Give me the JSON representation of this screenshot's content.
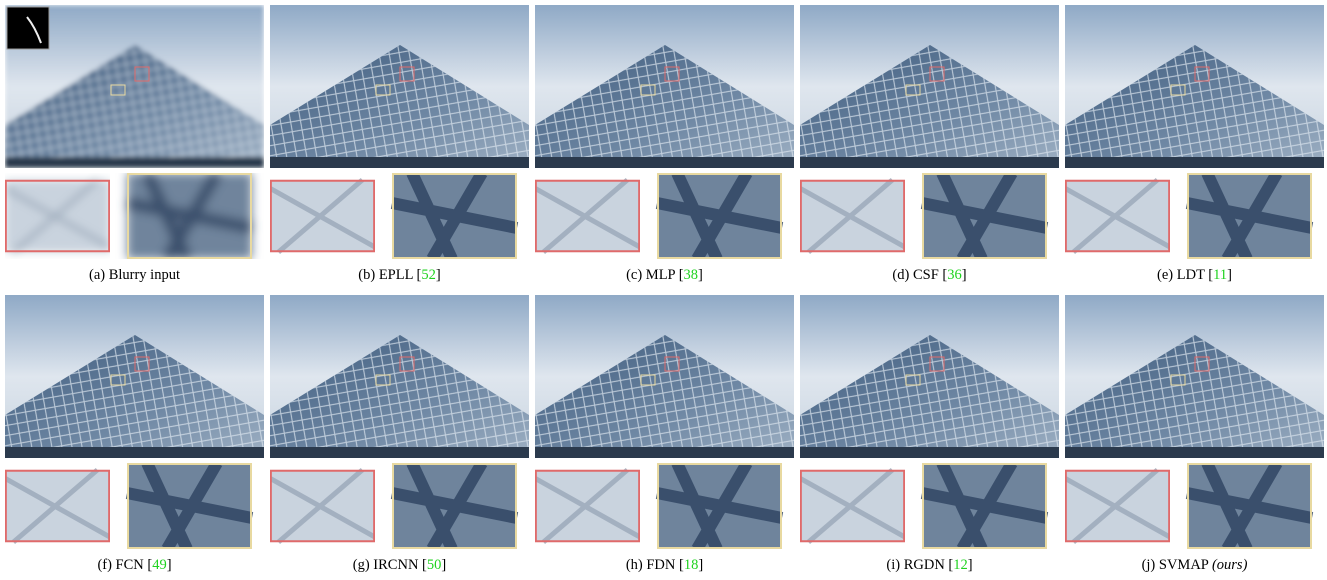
{
  "panels": [
    {
      "caption": "(a) Blurry input"
    },
    {
      "caption": "(b) EPLL [",
      "cite": "52",
      "caption_end": "]"
    },
    {
      "caption": "(c) MLP [",
      "cite": "38",
      "caption_end": "]"
    },
    {
      "caption": "(d) CSF [",
      "cite": "36",
      "caption_end": "]"
    },
    {
      "caption": "(e) LDT [",
      "cite": "11",
      "caption_end": "]"
    },
    {
      "caption": "(f) FCN [",
      "cite": "49",
      "caption_end": "]"
    },
    {
      "caption": "(g) IRCNN [",
      "cite": "50",
      "caption_end": "]"
    },
    {
      "caption": "(h) FDN [",
      "cite": "18",
      "caption_end": "]"
    },
    {
      "caption": "(i) RGDN [",
      "cite": "12",
      "caption_end": "]"
    },
    {
      "caption": "(j) SVMAP",
      "note": "(ours)"
    }
  ]
}
